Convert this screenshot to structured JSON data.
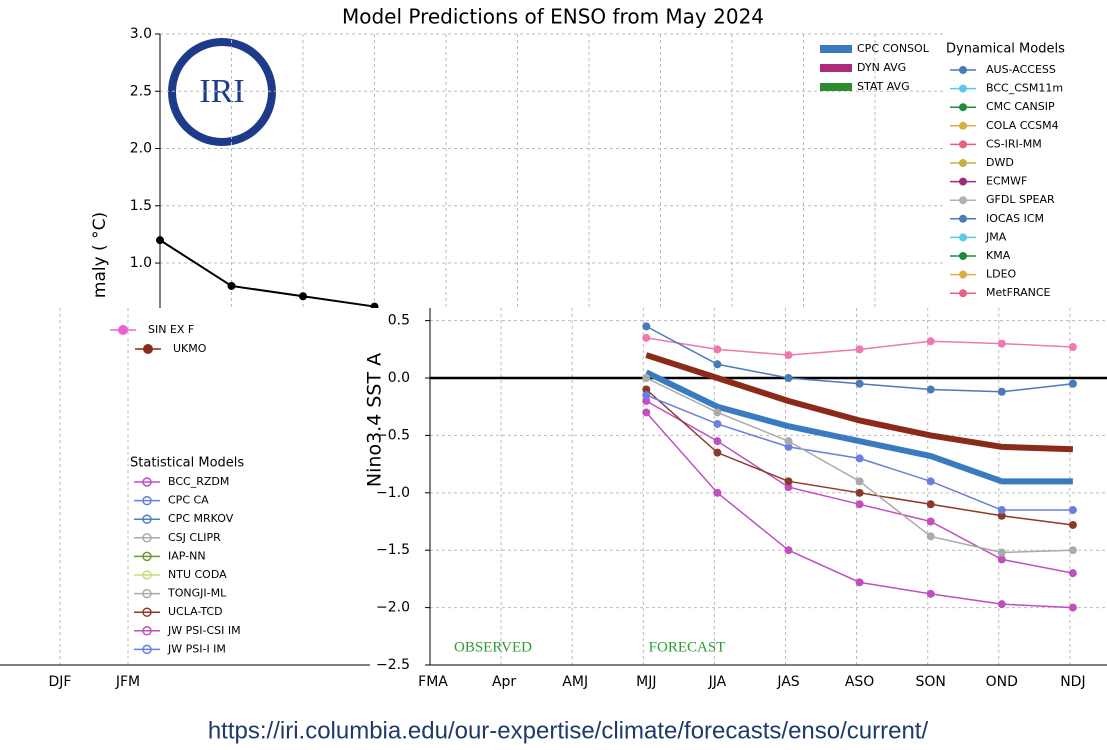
{
  "chart_data": [
    {
      "type": "line",
      "title": "Model Predictions of ENSO from May 2024",
      "y_label": "maly ( °C)",
      "logo_text": "IRI",
      "categories": [
        null,
        null,
        null,
        null
      ],
      "series": [
        {
          "color": "#000000",
          "values": [
            1.2,
            0.8,
            0.71,
            0.62
          ]
        }
      ],
      "ylim": [
        0.59,
        3.0
      ],
      "yticks": [
        {
          "value": 1.0,
          "label": "1.0"
        },
        {
          "value": 1.5,
          "label": "1.5"
        },
        {
          "value": 2.0,
          "label": "2.0"
        },
        {
          "value": 2.5,
          "label": "2.5"
        },
        {
          "value": 3.0,
          "label": "3.0"
        }
      ],
      "grid": true,
      "legend": [
        {
          "name": "CPC CONSOL",
          "color": "#3a7bbf"
        },
        {
          "name": "DYN AVG",
          "color": "#b02a7a"
        },
        {
          "name": "STAT AVG",
          "color": "#2e8b2e"
        }
      ],
      "dynamical_title": "Dynamical Models",
      "dynamical_models": [
        {
          "name": "AUS-ACCESS",
          "color": "#4a7ab8"
        },
        {
          "name": "BCC_CSM11m",
          "color": "#5ec8e8"
        },
        {
          "name": "CMC CANSIP",
          "color": "#1e8b3a"
        },
        {
          "name": "COLA CCSM4",
          "color": "#d8b040"
        },
        {
          "name": "CS-IRI-MM",
          "color": "#e86080"
        },
        {
          "name": "DWD",
          "color": "#c8b040"
        },
        {
          "name": "ECMWF",
          "color": "#a02a7a"
        },
        {
          "name": "GFDL SPEAR",
          "color": "#b0b0b0"
        },
        {
          "name": "IOCAS ICM",
          "color": "#4a7ab8"
        },
        {
          "name": "JMA",
          "color": "#5ec8e8"
        },
        {
          "name": "KMA",
          "color": "#1e8b3a"
        },
        {
          "name": "LDEO",
          "color": "#d8b040"
        },
        {
          "name": "MetFRANCE",
          "color": "#e86080"
        }
      ]
    },
    {
      "type": "line",
      "y_label": "Nino3.4 SST A",
      "categories": [
        "FMA",
        "Apr",
        "AMJ",
        "MJJ",
        "JJA",
        "JAS",
        "ASO",
        "SON",
        "OND",
        "NDJ"
      ],
      "series": [
        {
          "color": "#3a7bbf",
          "width": 6,
          "values": [
            null,
            null,
            null,
            0.05,
            -0.25,
            -0.42,
            -0.55,
            -0.68,
            -0.9,
            -0.9
          ]
        },
        {
          "color": "#8b2a1a",
          "width": 6,
          "values": [
            null,
            null,
            null,
            0.2,
            0.0,
            -0.2,
            -0.37,
            -0.5,
            -0.6,
            -0.62
          ]
        },
        {
          "color": "#c050c0",
          "width": 1.5,
          "values": [
            null,
            null,
            null,
            -0.3,
            -1.0,
            -1.5,
            -1.78,
            -1.88,
            -1.97,
            -2.0
          ]
        },
        {
          "color": "#c050c0",
          "width": 1.5,
          "values": [
            null,
            null,
            null,
            -0.2,
            -0.55,
            -0.95,
            -1.1,
            -1.25,
            -1.58,
            -1.7
          ]
        },
        {
          "color": "#8b3a2a",
          "width": 1.5,
          "values": [
            null,
            null,
            null,
            -0.1,
            -0.65,
            -0.9,
            -1.0,
            -1.1,
            -1.2,
            -1.28
          ]
        },
        {
          "color": "#6a7de0",
          "width": 1.5,
          "values": [
            null,
            null,
            null,
            -0.15,
            -0.4,
            -0.6,
            -0.7,
            -0.9,
            -1.15,
            -1.15
          ]
        },
        {
          "color": "#aaaaaa",
          "width": 1.5,
          "values": [
            null,
            null,
            null,
            0.0,
            -0.3,
            -0.55,
            -0.9,
            -1.38,
            -1.52,
            -1.5
          ]
        },
        {
          "color": "#f078b0",
          "width": 1.5,
          "values": [
            null,
            null,
            null,
            0.35,
            0.25,
            0.2,
            0.25,
            0.32,
            0.3,
            0.27
          ]
        },
        {
          "color": "#4a7ab8",
          "width": 1.5,
          "values": [
            null,
            null,
            null,
            0.45,
            0.12,
            0.0,
            -0.05,
            -0.1,
            -0.12,
            -0.05
          ]
        }
      ],
      "ylim": [
        -2.5,
        0.61
      ],
      "yticks": [
        {
          "value": -2.5,
          "label": "−2.5"
        },
        {
          "value": -2.0,
          "label": "−2.0"
        },
        {
          "value": -1.5,
          "label": "−1.5"
        },
        {
          "value": -1.0,
          "label": "−1.0"
        },
        {
          "value": -0.5,
          "label": "−0.5"
        },
        {
          "value": 0.0,
          "label": "0.0"
        },
        {
          "value": 0.5,
          "label": "0.5"
        }
      ],
      "grid": true,
      "annotations": [
        "OBSERVED",
        "FORECAST"
      ],
      "fragment_categories": [
        "DJF",
        "JFM"
      ],
      "fragment_models": [
        {
          "name": "SIN EX F",
          "color": "#f060d0"
        },
        {
          "name": "UKMO",
          "color": "#8b2a1a"
        }
      ],
      "statistical_title": "Statistical Models",
      "statistical_models": [
        {
          "name": "BCC_RZDM",
          "color": "#c050c0"
        },
        {
          "name": "CPC CA",
          "color": "#6a7de0"
        },
        {
          "name": "CPC MRKOV",
          "color": "#4a80c0"
        },
        {
          "name": "CSJ CLIPR",
          "color": "#aaaaaa"
        },
        {
          "name": "IAP-NN",
          "color": "#6a9a30"
        },
        {
          "name": "NTU CODA",
          "color": "#c0e070"
        },
        {
          "name": "TONGJI-ML",
          "color": "#aaaaaa"
        },
        {
          "name": "UCLA-TCD",
          "color": "#8b3a2a"
        },
        {
          "name": "JW PSI-CSI IM",
          "color": "#c050c0"
        },
        {
          "name": "JW PSI-I IM",
          "color": "#6a7de0"
        }
      ]
    }
  ],
  "footer": "https://iri.columbia.edu/our-expertise/climate/forecasts/enso/current/"
}
